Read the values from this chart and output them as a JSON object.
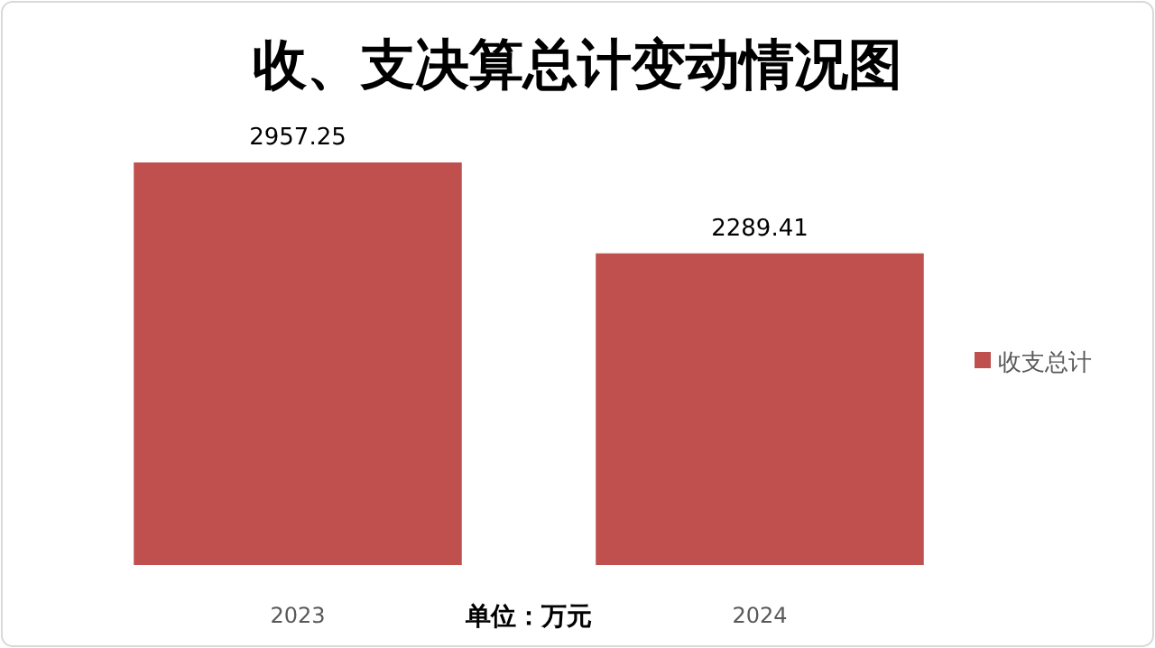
{
  "chart_data": {
    "type": "bar",
    "title": "收、支决算总计变动情况图",
    "xlabel": "单位：万元",
    "categories": [
      "2023",
      "2024"
    ],
    "series": [
      {
        "name": "收支总计",
        "color": "#c0504d",
        "values": [
          2957.25,
          2289.41
        ]
      }
    ],
    "data_labels": true,
    "legend": "right"
  }
}
